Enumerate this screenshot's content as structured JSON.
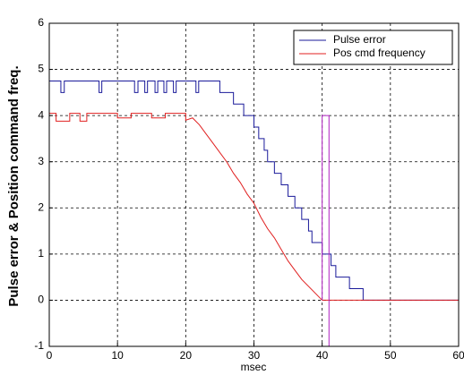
{
  "chart_data": {
    "type": "line",
    "xlabel": "msec",
    "ylabel": "Pulse error & Position command freq.",
    "xlim": [
      0,
      60
    ],
    "xticks": [
      0,
      10,
      20,
      30,
      40,
      50,
      60
    ],
    "ylim": [
      -1,
      6
    ],
    "yticks": [
      -1,
      0,
      1,
      2,
      3,
      4,
      5,
      6
    ],
    "grid": true,
    "legend": "upper-right",
    "series": [
      {
        "name": "Pulse error",
        "color": "#1a1a9a",
        "x": [
          0,
          1.7,
          1.7,
          2.2,
          2.2,
          7.3,
          7.3,
          7.7,
          7.7,
          12.5,
          12.5,
          13,
          13,
          14,
          14,
          14.4,
          14.4,
          15.5,
          15.5,
          15.9,
          15.9,
          16.8,
          16.8,
          17.2,
          17.2,
          18.2,
          18.2,
          18.6,
          18.6,
          21.5,
          21.5,
          21.9,
          21.9,
          25,
          25,
          27,
          27,
          28.5,
          28.5,
          30,
          30,
          30.7,
          30.7,
          31.5,
          31.5,
          32,
          32,
          33,
          33,
          34,
          34,
          35,
          35,
          36,
          36,
          37,
          37,
          38,
          38,
          38.5,
          38.5,
          40,
          40,
          41.3,
          41.3,
          42,
          42,
          44,
          44,
          46,
          46,
          60
        ],
        "values": [
          4.75,
          4.75,
          4.5,
          4.5,
          4.75,
          4.75,
          4.5,
          4.5,
          4.75,
          4.75,
          4.5,
          4.5,
          4.75,
          4.75,
          4.5,
          4.5,
          4.75,
          4.75,
          4.5,
          4.5,
          4.75,
          4.75,
          4.5,
          4.5,
          4.75,
          4.75,
          4.5,
          4.5,
          4.75,
          4.75,
          4.5,
          4.5,
          4.75,
          4.75,
          4.5,
          4.5,
          4.25,
          4.25,
          4,
          4,
          3.75,
          3.75,
          3.5,
          3.5,
          3.25,
          3.25,
          3,
          3,
          2.75,
          2.75,
          2.5,
          2.5,
          2.25,
          2.25,
          2,
          2,
          1.75,
          1.75,
          1.5,
          1.5,
          1.25,
          1.25,
          1,
          1,
          0.75,
          0.75,
          0.5,
          0.5,
          0.25,
          0.25,
          0,
          0
        ]
      },
      {
        "name": "Pos cmd frequency",
        "color": "#e02020",
        "x": [
          0,
          1,
          1,
          3,
          3,
          4.5,
          4.5,
          5.5,
          5.5,
          10,
          10,
          12,
          12,
          15,
          15,
          17,
          17,
          20,
          20,
          21,
          22,
          23,
          24,
          25,
          26,
          27,
          28,
          29,
          30,
          31,
          32,
          33,
          34,
          35,
          36,
          37,
          38,
          39,
          40,
          60
        ],
        "values": [
          4.05,
          4.05,
          3.88,
          3.88,
          4.05,
          4.05,
          3.88,
          3.88,
          4.05,
          4.05,
          3.95,
          3.95,
          4.05,
          4.05,
          3.95,
          3.95,
          4.05,
          4.05,
          3.9,
          3.95,
          3.8,
          3.6,
          3.4,
          3.2,
          3.0,
          2.75,
          2.55,
          2.3,
          2.1,
          1.8,
          1.55,
          1.35,
          1.1,
          0.85,
          0.65,
          0.45,
          0.3,
          0.15,
          0,
          0
        ]
      },
      {
        "color": "#b020c0",
        "x": [
          40,
          40,
          41,
          41
        ],
        "values": [
          0,
          4,
          4,
          -1
        ]
      }
    ]
  }
}
